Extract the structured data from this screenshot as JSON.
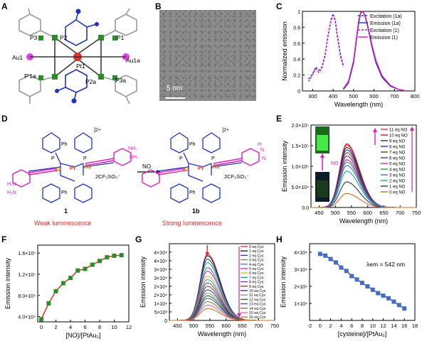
{
  "panels": {
    "A": "A",
    "B": "B",
    "C": "C",
    "D": "D",
    "E": "E",
    "F": "F",
    "G": "G",
    "H": "H"
  },
  "structure_labels": {
    "P3": "P3",
    "P2": "P2",
    "P1": "P1",
    "Au1": "Au1",
    "Pt1": "Pt1",
    "Au1a": "Au1a",
    "P1a": "P'1a",
    "P2a": "P2a",
    "P3a": "P3a"
  },
  "tem": {
    "scale": "5 nm"
  },
  "scheme": {
    "charge": "]2+",
    "counterion": "2CF₃SO₃⁻",
    "reagent": "NO",
    "compound1": "1",
    "compound1b": "1b",
    "label1": "Weak luminescence",
    "label1b": "Strong luminescence",
    "ph": "Ph",
    "nh2": "NH₂",
    "h2n": "H₂N",
    "au": "Au",
    "pt": "Pt",
    "p": "P",
    "n": "N",
    "h": "H"
  },
  "inset_label": "NO",
  "colors": {
    "magenta": "#e01bb6",
    "red": "#e0302b",
    "blue": "#1d33c8",
    "green": "#2c8c2c",
    "orange": "#d86c1a"
  },
  "chart_data": [
    {
      "panel": "C",
      "type": "line",
      "xlabel": "Wavelength (nm)",
      "ylabel": "Normalized emission",
      "xlim": [
        250,
        800
      ],
      "ylim": [
        0,
        1.0
      ],
      "xticks": [
        300,
        400,
        500,
        600,
        700,
        800
      ],
      "yticks": [
        0,
        0.2,
        0.4,
        0.6,
        0.8,
        1.0
      ],
      "legend": [
        "Excitation (1a)",
        "Emission (1a)",
        "Excitation (1)",
        "Emission (1)"
      ],
      "series": [
        {
          "name": "Excitation (1a)",
          "color": "#1d33c8",
          "dash": true,
          "x": [
            280,
            300,
            315,
            330,
            345,
            360,
            375,
            390,
            400,
            410,
            420,
            435,
            450
          ],
          "y": [
            0.15,
            0.22,
            0.3,
            0.26,
            0.3,
            0.45,
            0.7,
            0.9,
            0.97,
            0.88,
            0.7,
            0.45,
            0.3
          ]
        },
        {
          "name": "Emission (1a)",
          "color": "#1d33c8",
          "dash": false,
          "x": [
            450,
            475,
            500,
            515,
            525,
            535,
            545,
            555,
            570,
            590,
            610,
            640,
            680,
            720,
            760
          ],
          "y": [
            0.02,
            0.1,
            0.35,
            0.65,
            0.85,
            0.98,
            1.0,
            0.95,
            0.8,
            0.55,
            0.35,
            0.17,
            0.06,
            0.02,
            0.0
          ]
        },
        {
          "name": "Excitation (1)",
          "color": "#e01bb6",
          "dash": true,
          "x": [
            280,
            300,
            315,
            330,
            345,
            360,
            375,
            390,
            400,
            410,
            420,
            435,
            450
          ],
          "y": [
            0.12,
            0.2,
            0.28,
            0.23,
            0.28,
            0.43,
            0.68,
            0.88,
            0.95,
            0.9,
            0.72,
            0.48,
            0.32
          ]
        },
        {
          "name": "Emission (1)",
          "color": "#e01bb6",
          "dash": false,
          "x": [
            450,
            475,
            500,
            515,
            525,
            535,
            545,
            555,
            570,
            590,
            610,
            640,
            680,
            720,
            760
          ],
          "y": [
            0.03,
            0.12,
            0.38,
            0.68,
            0.88,
            0.99,
            1.0,
            0.96,
            0.82,
            0.58,
            0.38,
            0.19,
            0.07,
            0.02,
            0.0
          ]
        }
      ]
    },
    {
      "panel": "E",
      "type": "line",
      "xlabel": "Wavelength (nm)",
      "ylabel": "Emission intensity",
      "xlim": [
        425,
        750
      ],
      "ylim": [
        0,
        2.0
      ],
      "xticks": [
        450,
        500,
        550,
        600,
        650,
        700,
        750
      ],
      "yticks": [
        0,
        0.5,
        1.0,
        1.5,
        2.0
      ],
      "ytick_labels": [
        "0.0",
        "5.0×10⁴",
        "1.0×10⁵",
        "1.5×10⁵",
        "2.0×10⁵"
      ],
      "peak_x": 535,
      "width": 55,
      "legend": [
        "11 eq NO",
        "10 eq NO",
        "9 eq NO",
        "8 eq NO",
        "7 eq NO",
        "6 eq NO",
        "5 eq NO",
        "4 eq NO",
        "3 eq NO",
        "2 eq NO",
        "1 eq NO",
        "0 eq NO"
      ],
      "series_peaks": [
        1.55,
        1.52,
        1.46,
        1.4,
        1.33,
        1.25,
        1.16,
        1.1,
        1.02,
        0.88,
        0.62,
        0.34
      ],
      "series_colors": [
        "#e0302b",
        "#d02020",
        "#333333",
        "#1d33c8",
        "#7a3b17",
        "#5a2a9a",
        "#e01bb6",
        "#2aa84a",
        "#3b70c8",
        "#1aa0a0",
        "#2c2c7c",
        "#d86c1a"
      ]
    },
    {
      "panel": "F",
      "type": "line",
      "xlabel": "[NO]/[PtAu₂]",
      "ylabel": "Emission intensity",
      "xlim": [
        -0.5,
        12
      ],
      "ylim": [
        3.2,
        1.75
      ],
      "xticks": [
        0,
        2,
        4,
        6,
        8,
        10,
        12
      ],
      "ytick_values": [
        4.0,
        8.0,
        12.0,
        16.0
      ],
      "ytick_labels": [
        "4.0×10⁴",
        "8.0×10⁴",
        "1.2×10⁵",
        "1.6×10⁵"
      ],
      "x": [
        0,
        1,
        2,
        3,
        4,
        5,
        6,
        7,
        8,
        9,
        10,
        11
      ],
      "y": [
        3.5,
        6.5,
        8.8,
        10.3,
        11.3,
        12.7,
        13.0,
        13.8,
        14.5,
        15.2,
        15.5,
        15.6
      ]
    },
    {
      "panel": "G",
      "type": "line",
      "xlabel": "Wavelength (nm)",
      "ylabel": "Emission intensity",
      "xlim": [
        425,
        750
      ],
      "ylim": [
        0,
        4.5
      ],
      "xticks": [
        450,
        500,
        550,
        600,
        650,
        700,
        750
      ],
      "yticks": [
        0,
        0.5,
        1,
        1.5,
        2,
        2.5,
        3,
        3.5,
        4
      ],
      "ytick_labels": [
        "0",
        "5×10³",
        "1×10⁴",
        "2×10⁴",
        "2×10⁴",
        "3×10⁴",
        "3×10⁴",
        "4×10⁴",
        "4×10⁴"
      ],
      "peak_x": 542,
      "width": 55,
      "legend": [
        "0 eq Cys",
        "1 eq Cys",
        "2 eq Cys",
        "3 eq Cys",
        "4 eq Cys",
        "5 eq Cys",
        "6 eq Cys",
        "7 eq Cys",
        "8 eq Cys",
        "9 eq Cys",
        "10 eq Cys",
        "11 eq Cys",
        "12 eq Cys",
        "13 eq Cys",
        "14 eq Cys",
        "15 eq Cys",
        "16 eq Cys"
      ],
      "series_peaks": [
        3.9,
        3.8,
        3.6,
        3.4,
        3.1,
        2.9,
        2.6,
        2.4,
        2.2,
        2.0,
        1.8,
        1.6,
        1.45,
        1.3,
        1.1,
        0.9,
        0.7
      ],
      "series_colors": [
        "#e0302b",
        "#111111",
        "#1d33c8",
        "#2aa84a",
        "#3b70c8",
        "#e01bb6",
        "#c8b820",
        "#1aa0a0",
        "#6a3ab0",
        "#7a3b17",
        "#2c2c7c",
        "#888888",
        "#1a6a1a",
        "#3050e0",
        "#8a6a2a",
        "#e060c0",
        "#d86c1a"
      ]
    },
    {
      "panel": "H",
      "type": "line",
      "xlabel": "[cysteine]/[PtAu₂]",
      "ylabel": "Emission intensity",
      "xlim": [
        -2,
        18
      ],
      "ylim": [
        0,
        4.5
      ],
      "xticks": [
        -2,
        0,
        2,
        4,
        6,
        8,
        10,
        12,
        14,
        16,
        18
      ],
      "yticks": [
        1,
        2,
        3,
        4
      ],
      "ytick_labels": [
        "1×10⁴",
        "2×10⁴",
        "3×10⁴",
        "4×10⁴"
      ],
      "annotation": "λem = 542 nm",
      "x": [
        0,
        1,
        2,
        3,
        4,
        5,
        6,
        7,
        8,
        9,
        10,
        11,
        12,
        13,
        14,
        15,
        16
      ],
      "y": [
        3.9,
        3.8,
        3.6,
        3.4,
        3.1,
        2.9,
        2.6,
        2.4,
        2.2,
        2.0,
        1.8,
        1.6,
        1.45,
        1.3,
        1.1,
        0.9,
        0.7
      ]
    }
  ]
}
